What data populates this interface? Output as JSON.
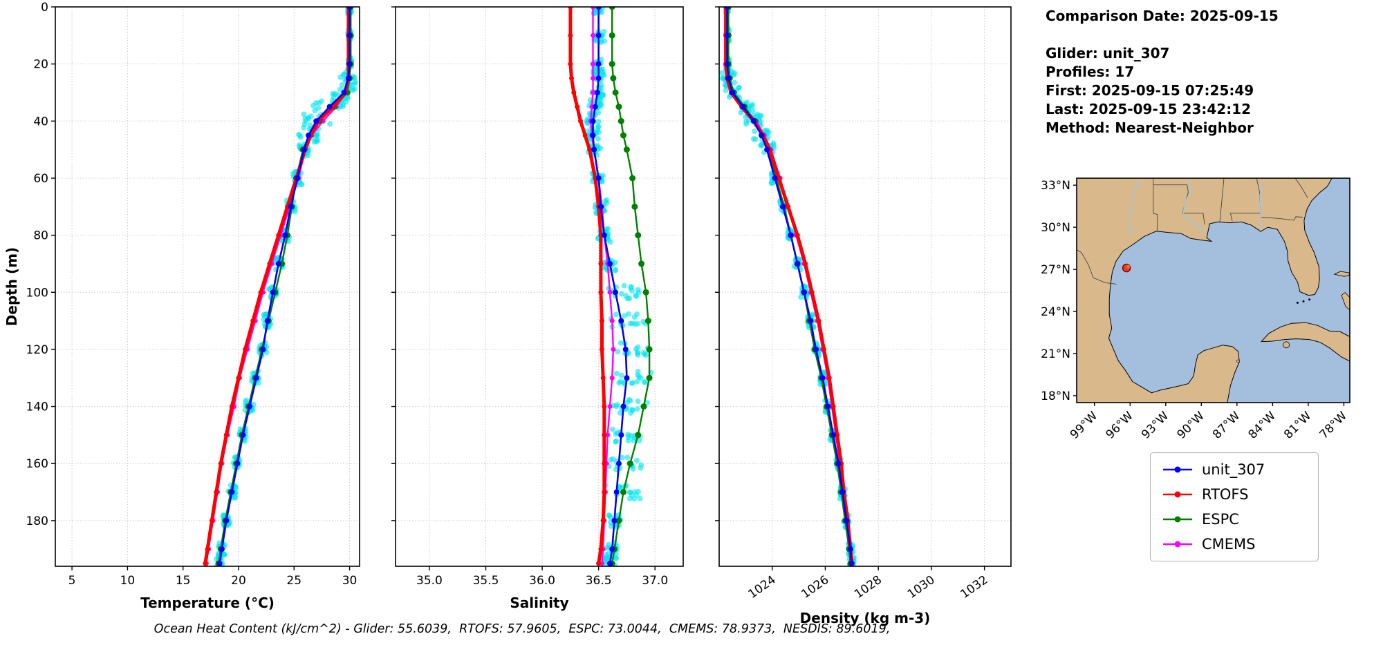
{
  "colors": {
    "unit_307": "#0000ff",
    "RTOFS": "#ff0000",
    "ESPC": "#008000",
    "CMEMS": "#ff00ff",
    "scatter": "#00e5ee",
    "grid": "#c9c9c9",
    "land": "#d9b98c",
    "water": "#a3bfdd",
    "marker_edge": "#8b0000"
  },
  "info_panel": {
    "lines": [
      "Comparison Date: 2025-09-15",
      "Glider: unit_307",
      "Profiles: 17",
      "First: 2025-09-15 07:25:49",
      "Last: 2025-09-15 23:42:12",
      "Method: Nearest-Neighbor"
    ]
  },
  "caption": "Ocean Heat Content (kJ/cm^2) - Glider: 55.6039,  RTOFS: 57.9605,  ESPC: 73.0044,  CMEMS: 78.9373,  NESDIS: 89.6019,",
  "legend": {
    "entries": [
      {
        "label": "unit_307",
        "color": "#0000ff"
      },
      {
        "label": "RTOFS",
        "color": "#ff0000"
      },
      {
        "label": "ESPC",
        "color": "#008000"
      },
      {
        "label": "CMEMS",
        "color": "#ff00ff"
      }
    ]
  },
  "chart_data": {
    "type": "line",
    "orientation": "profiles-vs-depth",
    "depths": [
      0,
      10,
      20,
      25,
      30,
      35,
      40,
      45,
      50,
      60,
      70,
      80,
      90,
      100,
      110,
      120,
      130,
      140,
      150,
      160,
      170,
      180,
      190,
      195
    ],
    "depth_axis": {
      "label": "Depth (m)",
      "lim": [
        0,
        196
      ],
      "ticks": [
        0,
        20,
        40,
        60,
        80,
        100,
        120,
        140,
        160,
        180
      ],
      "inverted": true
    },
    "panels": [
      {
        "id": "temperature",
        "xlabel": "Temperature (°C)",
        "xlim": [
          3.5,
          30.9
        ],
        "xticks": [
          5,
          10,
          15,
          20,
          25,
          30
        ],
        "xtick_labels": [
          "5",
          "10",
          "15",
          "20",
          "25",
          "30"
        ],
        "tick_rotation": 0,
        "scatter_spread": 0.22,
        "scatter_boost_range": [
          24,
          48
        ],
        "scatter_offset": 0,
        "series": [
          {
            "name": "unit_307",
            "values": [
              30.0,
              30.0,
              30.0,
              29.9,
              29.5,
              28.2,
              27.0,
              26.3,
              25.9,
              25.3,
              24.7,
              24.2,
              23.6,
              23.1,
              22.6,
              22.2,
              21.6,
              21.0,
              20.4,
              19.9,
              19.4,
              18.9,
              18.5,
              18.3
            ]
          },
          {
            "name": "RTOFS",
            "values": [
              29.9,
              29.9,
              29.9,
              29.9,
              29.6,
              28.5,
              27.2,
              26.5,
              26.0,
              25.2,
              24.4,
              23.6,
              22.8,
              22.0,
              21.3,
              20.6,
              20.0,
              19.4,
              18.9,
              18.4,
              18.0,
              17.6,
              17.2,
              17.0
            ]
          },
          {
            "name": "ESPC",
            "values": [
              30.1,
              30.1,
              30.1,
              30.0,
              29.8,
              28.6,
              27.3,
              26.4,
              25.8,
              25.2,
              24.8,
              24.4,
              23.9,
              23.3,
              22.7,
              22.1,
              21.5,
              20.9,
              20.3,
              19.8,
              19.3,
              18.8,
              18.4,
              18.2
            ]
          },
          {
            "name": "CMEMS",
            "values": [
              30.0,
              30.0,
              30.0,
              29.9,
              29.7,
              28.8,
              27.6,
              26.6,
              26.0,
              25.4,
              24.6,
              23.8,
              23.0,
              22.2,
              21.5,
              20.8,
              20.1,
              19.6,
              19.0,
              18.5,
              18.1,
              17.7,
              17.3,
              17.1
            ]
          }
        ]
      },
      {
        "id": "salinity",
        "xlabel": "Salinity",
        "xlim": [
          34.7,
          37.25
        ],
        "xticks": [
          35.0,
          35.5,
          36.0,
          36.5,
          37.0
        ],
        "xtick_labels": [
          "35.0",
          "35.5",
          "36.0",
          "36.5",
          "37.0"
        ],
        "tick_rotation": 0,
        "scatter_spread": 0.065,
        "scatter_boost_range": [
          100,
          175
        ],
        "scatter_offset": 0.06,
        "series": [
          {
            "name": "unit_307",
            "values": [
              36.5,
              36.5,
              36.5,
              36.5,
              36.49,
              36.47,
              36.45,
              36.45,
              36.46,
              36.5,
              36.52,
              36.55,
              36.6,
              36.65,
              36.7,
              36.74,
              36.75,
              36.72,
              36.7,
              36.68,
              36.66,
              36.64,
              36.62,
              36.6
            ]
          },
          {
            "name": "RTOFS",
            "values": [
              36.25,
              36.25,
              36.25,
              36.26,
              36.28,
              36.31,
              36.34,
              36.38,
              36.42,
              36.47,
              36.5,
              36.52,
              36.52,
              36.52,
              36.53,
              36.53,
              36.54,
              36.55,
              36.55,
              36.55,
              36.55,
              36.54,
              36.52,
              36.5
            ]
          },
          {
            "name": "ESPC",
            "values": [
              36.62,
              36.62,
              36.62,
              36.63,
              36.65,
              36.68,
              36.7,
              36.72,
              36.75,
              36.8,
              36.82,
              36.85,
              36.88,
              36.92,
              36.94,
              36.95,
              36.95,
              36.9,
              36.85,
              36.78,
              36.72,
              36.68,
              36.64,
              36.62
            ]
          },
          {
            "name": "CMEMS",
            "values": [
              36.45,
              36.45,
              36.45,
              36.45,
              36.45,
              36.44,
              36.43,
              36.44,
              36.46,
              36.5,
              36.53,
              36.55,
              36.58,
              36.6,
              36.62,
              36.63,
              36.62,
              36.6,
              36.58,
              36.57,
              36.56,
              36.55,
              36.54,
              36.53
            ]
          }
        ]
      },
      {
        "id": "density",
        "xlabel": "Density (kg m-3)",
        "xlim": [
          1022.0,
          1033.0
        ],
        "xticks": [
          1024,
          1026,
          1028,
          1030,
          1032
        ],
        "xtick_labels": [
          "1024",
          "1026",
          "1028",
          "1030",
          "1032"
        ],
        "tick_rotation": 35,
        "scatter_spread": 0.1,
        "scatter_boost_range": [
          24,
          55
        ],
        "scatter_offset": 0.02,
        "series": [
          {
            "name": "unit_307",
            "values": [
              1022.3,
              1022.3,
              1022.3,
              1022.35,
              1022.5,
              1022.9,
              1023.3,
              1023.6,
              1023.8,
              1024.1,
              1024.4,
              1024.7,
              1024.95,
              1025.2,
              1025.45,
              1025.65,
              1025.9,
              1026.1,
              1026.3,
              1026.5,
              1026.65,
              1026.8,
              1026.95,
              1027.0
            ]
          },
          {
            "name": "RTOFS",
            "values": [
              1022.25,
              1022.25,
              1022.25,
              1022.3,
              1022.45,
              1022.85,
              1023.3,
              1023.65,
              1023.9,
              1024.25,
              1024.6,
              1024.95,
              1025.25,
              1025.5,
              1025.75,
              1025.95,
              1026.15,
              1026.3,
              1026.45,
              1026.6,
              1026.7,
              1026.85,
              1026.95,
              1027.0
            ]
          },
          {
            "name": "ESPC",
            "values": [
              1022.35,
              1022.35,
              1022.35,
              1022.4,
              1022.55,
              1022.95,
              1023.35,
              1023.6,
              1023.85,
              1024.15,
              1024.45,
              1024.7,
              1024.95,
              1025.2,
              1025.4,
              1025.6,
              1025.85,
              1026.05,
              1026.25,
              1026.45,
              1026.6,
              1026.75,
              1026.9,
              1026.95
            ]
          },
          {
            "name": "CMEMS",
            "values": [
              1022.3,
              1022.3,
              1022.3,
              1022.35,
              1022.5,
              1022.9,
              1023.4,
              1023.7,
              1023.95,
              1024.3,
              1024.6,
              1024.9,
              1025.2,
              1025.45,
              1025.7,
              1025.9,
              1026.1,
              1026.25,
              1026.4,
              1026.55,
              1026.7,
              1026.8,
              1026.9,
              1026.95
            ]
          }
        ]
      }
    ],
    "legend_entries": [
      "unit_307",
      "RTOFS",
      "ESPC",
      "CMEMS"
    ]
  },
  "map": {
    "extent": {
      "lon": [
        -100.5,
        -77.5
      ],
      "lat": [
        17.5,
        33.5
      ]
    },
    "xtick_lons": [
      -99,
      -96,
      -93,
      -90,
      -87,
      -84,
      -81,
      -78
    ],
    "xtick_labels": [
      "99°W",
      "96°W",
      "93°W",
      "90°W",
      "87°W",
      "84°W",
      "81°W",
      "78°W"
    ],
    "ytick_lats": [
      18,
      21,
      24,
      27,
      30,
      33
    ],
    "ytick_labels": [
      "18°N",
      "21°N",
      "24°N",
      "27°N",
      "30°N",
      "33°N"
    ],
    "marker": {
      "lon": -96.3,
      "lat": 27.1
    }
  }
}
